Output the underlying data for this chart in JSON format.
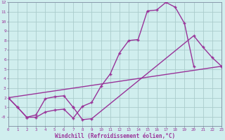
{
  "bg_color": "#d0eeee",
  "line_color": "#993399",
  "grid_color": "#aacccc",
  "xlabel": "Windchill (Refroidissement éolien,°C)",
  "xlim": [
    0,
    23
  ],
  "ylim": [
    -1,
    12
  ],
  "xtick_vals": [
    0,
    1,
    2,
    3,
    4,
    5,
    6,
    7,
    8,
    9,
    10,
    11,
    12,
    13,
    14,
    15,
    16,
    17,
    18,
    19,
    20,
    21,
    22,
    23
  ],
  "ytick_vals": [
    0,
    1,
    2,
    3,
    4,
    5,
    6,
    7,
    8,
    9,
    10,
    11,
    12
  ],
  "ytick_labels": [
    "-0",
    "1",
    "2",
    "3",
    "4",
    "5",
    "6",
    "7",
    "8",
    "9",
    "10",
    "11",
    "12"
  ],
  "curve1_x": [
    0,
    1,
    2,
    3,
    4,
    5,
    6,
    7,
    8,
    9,
    10,
    11,
    12,
    13,
    14,
    15,
    16,
    17,
    18,
    19,
    20
  ],
  "curve1_y": [
    2.0,
    1.0,
    -0.05,
    -0.05,
    0.5,
    0.7,
    0.8,
    -0.15,
    1.1,
    1.5,
    3.2,
    4.5,
    6.7,
    8.0,
    8.1,
    11.1,
    11.2,
    12.0,
    11.5,
    9.8,
    5.3
  ],
  "curve2a_x": [
    0,
    1,
    2,
    3,
    4,
    5,
    6,
    7
  ],
  "curve2a_y": [
    2.0,
    1.0,
    -0.05,
    0.2,
    1.9,
    2.1,
    2.2,
    1.0
  ],
  "curve2b_x": [
    7,
    8,
    9,
    20,
    21,
    22,
    23
  ],
  "curve2b_y": [
    1.0,
    -0.3,
    -0.2,
    8.5,
    7.3,
    6.2,
    5.3
  ],
  "curve3_x": [
    0,
    23
  ],
  "curve3_y": [
    2.0,
    5.3
  ]
}
